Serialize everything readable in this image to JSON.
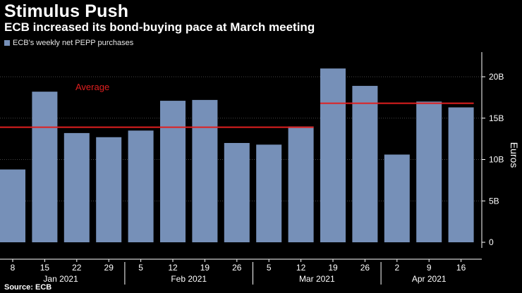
{
  "header": {
    "title": "Stimulus Push",
    "subtitle": "ECB increased its bond-buying pace at March meeting"
  },
  "legend": {
    "label": "ECB's weekly net PEPP purchases"
  },
  "footer": {
    "source": "Source: ECB"
  },
  "colors": {
    "bar": "#7690b8",
    "average_line": "#e01f1f",
    "grid": "#444444"
  },
  "chart_data": {
    "type": "bar",
    "title": "Stimulus Push",
    "subtitle": "ECB increased its bond-buying pace at March meeting",
    "ylabel": "Euros",
    "ylim": [
      0,
      23.5
    ],
    "yticks": [
      {
        "value": 0,
        "label": "0"
      },
      {
        "value": 5,
        "label": "5B"
      },
      {
        "value": 10,
        "label": "10B"
      },
      {
        "value": 15,
        "label": "15B"
      },
      {
        "value": 20,
        "label": "20B"
      }
    ],
    "categories": [
      "8",
      "15",
      "22",
      "29",
      "5",
      "12",
      "19",
      "26",
      "5",
      "12",
      "19",
      "26",
      "2",
      "9",
      "16"
    ],
    "months": [
      {
        "label": "Jan 2021",
        "start": 0,
        "end": 3
      },
      {
        "label": "Feb 2021",
        "start": 4,
        "end": 7
      },
      {
        "label": "Mar 2021",
        "start": 8,
        "end": 11
      },
      {
        "label": "Apr 2021",
        "start": 12,
        "end": 14
      }
    ],
    "series": [
      {
        "name": "ECB's weekly net PEPP purchases",
        "values": [
          8.8,
          18.2,
          13.2,
          12.7,
          13.5,
          17.1,
          17.2,
          12.0,
          11.8,
          14.0,
          21.0,
          18.9,
          10.6,
          17.0,
          16.3
        ]
      }
    ],
    "averages": [
      {
        "label": "Average",
        "value": 13.9,
        "start": 0,
        "end": 9
      },
      {
        "label": "",
        "value": 16.8,
        "start": 10,
        "end": 14
      }
    ],
    "grid": true
  }
}
